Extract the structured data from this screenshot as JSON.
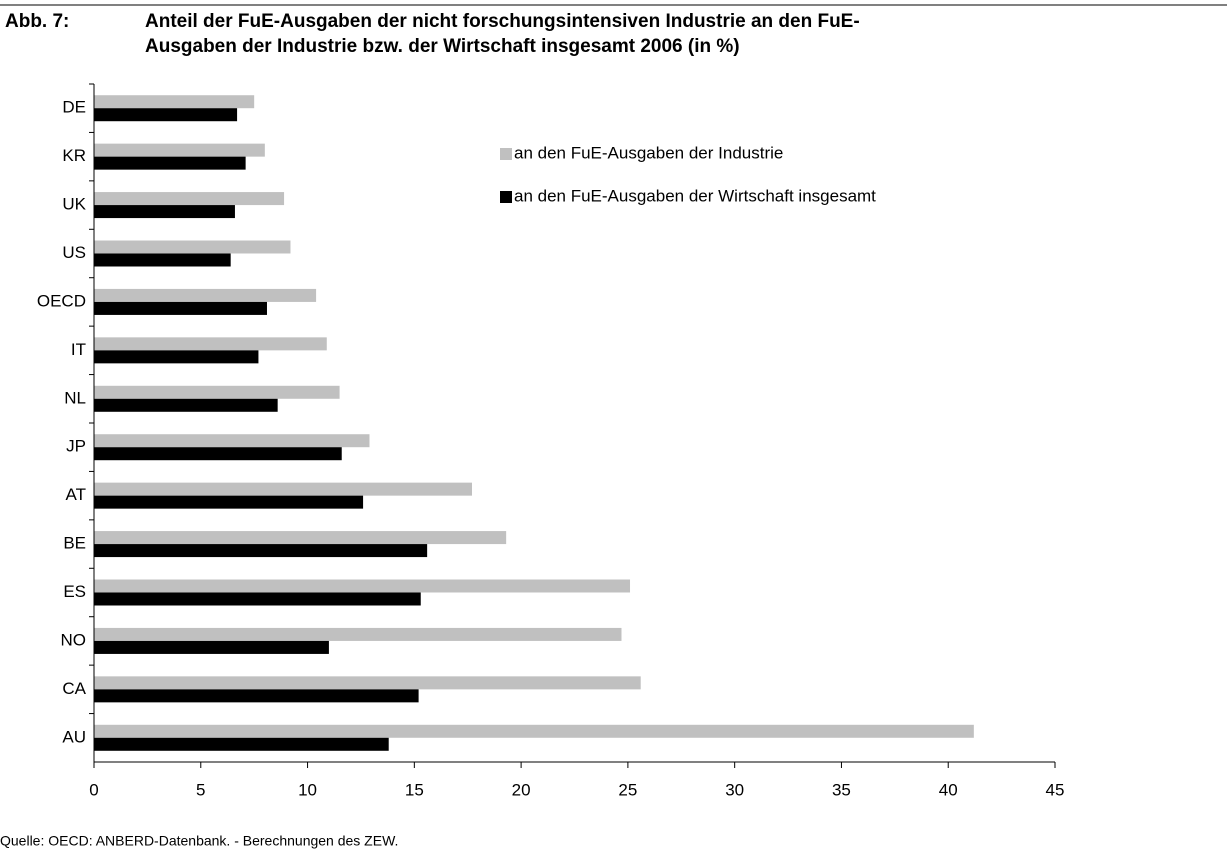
{
  "chart_data": {
    "type": "bar",
    "orientation": "horizontal",
    "figure_label": "Abb. 7:",
    "title": [
      "Anteil der FuE-Ausgaben der nicht forschungsintensiven Industrie an den FuE-",
      "Ausgaben der Industrie bzw. der Wirtschaft insgesamt 2006 (in %)"
    ],
    "categories": [
      "DE",
      "KR",
      "UK",
      "US",
      "OECD",
      "IT",
      "NL",
      "JP",
      "AT",
      "BE",
      "ES",
      "NO",
      "CA",
      "AU"
    ],
    "series": [
      {
        "name": "an den FuE-Ausgaben der Industrie",
        "color": "#c0c0c0",
        "values": [
          7.5,
          8.0,
          8.9,
          9.2,
          10.4,
          10.9,
          11.5,
          12.9,
          17.7,
          19.3,
          25.1,
          24.7,
          25.6,
          41.2
        ]
      },
      {
        "name": "an den FuE-Ausgaben der Wirtschaft insgesamt",
        "color": "#000000",
        "values": [
          6.7,
          7.1,
          6.6,
          6.4,
          8.1,
          7.7,
          8.6,
          11.6,
          12.6,
          15.6,
          15.3,
          11.0,
          15.2,
          13.8
        ]
      }
    ],
    "xlim": [
      0,
      45
    ],
    "xticks": [
      0,
      5,
      10,
      15,
      20,
      25,
      30,
      35,
      40,
      45
    ],
    "legend": "upper right",
    "source": "Quelle:   OECD: ANBERD-Datenbank. - Berechnungen des ZEW."
  }
}
